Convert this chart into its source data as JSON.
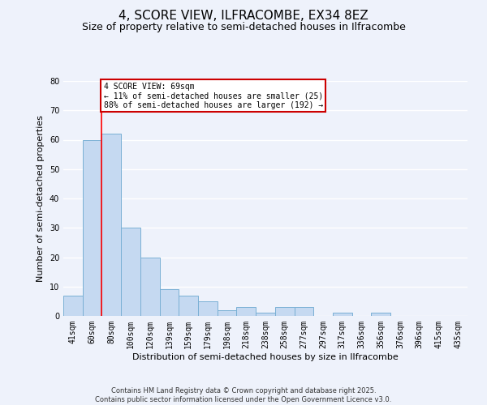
{
  "title": "4, SCORE VIEW, ILFRACOMBE, EX34 8EZ",
  "subtitle": "Size of property relative to semi-detached houses in Ilfracombe",
  "xlabel": "Distribution of semi-detached houses by size in Ilfracombe",
  "ylabel": "Number of semi-detached properties",
  "categories": [
    "41sqm",
    "60sqm",
    "80sqm",
    "100sqm",
    "120sqm",
    "139sqm",
    "159sqm",
    "179sqm",
    "198sqm",
    "218sqm",
    "238sqm",
    "258sqm",
    "277sqm",
    "297sqm",
    "317sqm",
    "336sqm",
    "356sqm",
    "376sqm",
    "396sqm",
    "415sqm",
    "435sqm"
  ],
  "bar_values": [
    7,
    60,
    62,
    30,
    20,
    9,
    7,
    5,
    2,
    3,
    1,
    3,
    3,
    0,
    1,
    0,
    1,
    0,
    0,
    0,
    0
  ],
  "bar_color": "#c5d9f1",
  "bar_edge_color": "#7ab0d4",
  "background_color": "#eef2fb",
  "grid_color": "#ffffff",
  "red_line_x": 1.5,
  "annotation_text": "4 SCORE VIEW: 69sqm\n← 11% of semi-detached houses are smaller (25)\n88% of semi-detached houses are larger (192) →",
  "annotation_box_color": "#cc0000",
  "ylim": [
    0,
    80
  ],
  "yticks": [
    0,
    10,
    20,
    30,
    40,
    50,
    60,
    70,
    80
  ],
  "footer_line1": "Contains HM Land Registry data © Crown copyright and database right 2025.",
  "footer_line2": "Contains public sector information licensed under the Open Government Licence v3.0.",
  "title_fontsize": 11,
  "subtitle_fontsize": 9,
  "axis_label_fontsize": 8,
  "tick_fontsize": 7,
  "annotation_fontsize": 7
}
